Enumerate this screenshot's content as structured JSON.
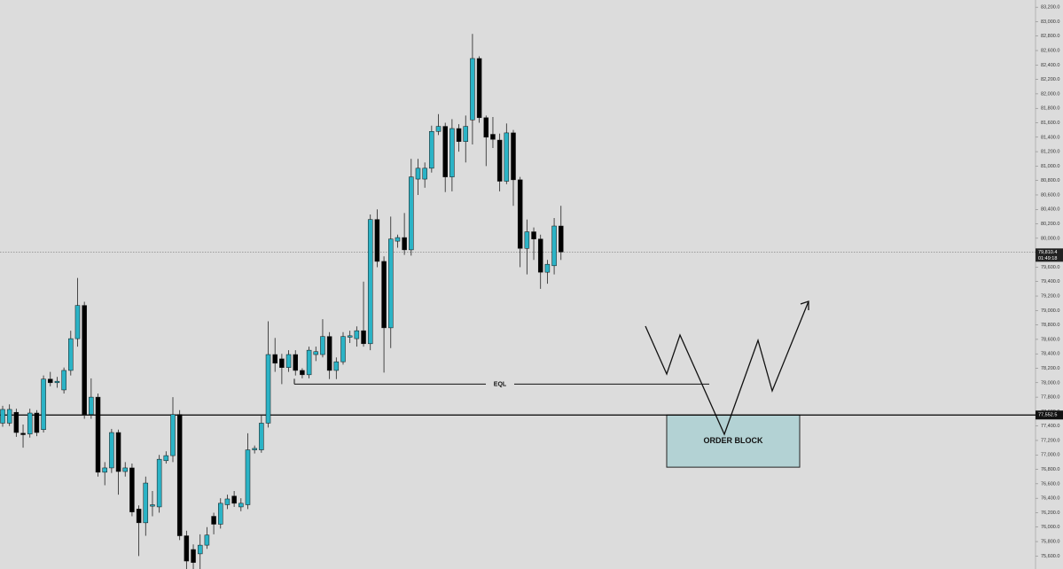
{
  "chart_data": {
    "type": "candlestick",
    "up_color": "#2bb3c6",
    "down_color": "#000000",
    "open": [
      77440,
      77440,
      77590,
      77300,
      77290,
      77580,
      77350,
      78050,
      78000,
      77900,
      78170,
      78610,
      79070,
      77560,
      77800,
      76760,
      76820,
      77310,
      76770,
      76820,
      76250,
      76060,
      76290,
      76280,
      76920,
      76990,
      77560,
      75880,
      75690,
      75630,
      75750,
      76150,
      76040,
      76310,
      76430,
      76280,
      76310,
      77070,
      77070,
      77440,
      78390,
      78330,
      78210,
      78390,
      78170,
      78110,
      78390,
      78390,
      78640,
      78170,
      78290,
      78630,
      78610,
      78720,
      78540,
      80260,
      79680,
      78760,
      79960,
      80010,
      79840,
      80820,
      80820,
      80970,
      81480,
      81550,
      80850,
      81520,
      81340,
      81640,
      82490,
      81670,
      81440,
      81360,
      80790,
      81460,
      80810,
      79860,
      80090,
      79990,
      79530,
      79620,
      80170
    ],
    "high": [
      77680,
      77700,
      77640,
      77420,
      77640,
      77620,
      78100,
      78150,
      78080,
      78210,
      78720,
      79450,
      79120,
      78060,
      77850,
      76900,
      77360,
      77350,
      76900,
      76880,
      76300,
      76700,
      76500,
      77000,
      77050,
      77800,
      77620,
      75950,
      75760,
      75900,
      76000,
      76200,
      76400,
      76450,
      76500,
      76400,
      77300,
      77130,
      77560,
      78850,
      78620,
      78400,
      78450,
      78450,
      78200,
      78500,
      78500,
      78880,
      78700,
      78350,
      78700,
      78720,
      78780,
      79400,
      80330,
      80400,
      79750,
      80300,
      80050,
      80350,
      81100,
      81100,
      81050,
      81560,
      81720,
      81600,
      81650,
      81580,
      81700,
      82830,
      82520,
      81700,
      81680,
      81450,
      81590,
      81500,
      80850,
      80260,
      80150,
      80050,
      79700,
      80280,
      80450
    ],
    "low": [
      77390,
      77400,
      77250,
      77100,
      77240,
      77260,
      77310,
      77950,
      77930,
      77850,
      78100,
      78500,
      77500,
      77500,
      76700,
      76580,
      76750,
      76450,
      76700,
      76150,
      75600,
      75880,
      76150,
      76200,
      76880,
      76900,
      75820,
      75420,
      75420,
      75420,
      75700,
      75900,
      75980,
      76250,
      76280,
      76220,
      76250,
      77020,
      77030,
      77380,
      78150,
      77980,
      78150,
      78100,
      78060,
      78060,
      78300,
      78350,
      78050,
      78050,
      78250,
      78550,
      78500,
      78500,
      78450,
      79600,
      78140,
      78480,
      79870,
      79770,
      79760,
      80600,
      80700,
      80910,
      81430,
      80640,
      80650,
      81200,
      81050,
      81300,
      81600,
      81000,
      81250,
      80650,
      80750,
      80450,
      79600,
      79500,
      79700,
      79300,
      79370,
      79500,
      79700
    ],
    "close": [
      77630,
      77630,
      77310,
      77280,
      77580,
      77310,
      78050,
      78000,
      78020,
      78170,
      78610,
      79070,
      77560,
      77800,
      76760,
      76820,
      77310,
      76770,
      76820,
      76210,
      76060,
      76610,
      76310,
      76940,
      76990,
      77560,
      75880,
      75530,
      75510,
      75750,
      75890,
      76040,
      76330,
      76390,
      76330,
      76330,
      77070,
      77090,
      77440,
      78390,
      78270,
      78210,
      78390,
      78170,
      78110,
      78450,
      78430,
      78640,
      78170,
      78290,
      78640,
      78650,
      78720,
      78540,
      80260,
      79680,
      78760,
      79990,
      80010,
      79840,
      80850,
      80970,
      80970,
      81480,
      81550,
      80850,
      81520,
      81340,
      81550,
      82490,
      81670,
      81400,
      81370,
      80790,
      81460,
      80810,
      79860,
      80090,
      79990,
      79530,
      79640,
      80170,
      79810
    ],
    "ylim": [
      75420,
      83300
    ],
    "yticks": [
      {
        "value": 75600,
        "label": "75,600.0"
      },
      {
        "value": 75800,
        "label": "75,800.0"
      },
      {
        "value": 76000,
        "label": "76,000.0"
      },
      {
        "value": 76200,
        "label": "76,200.0"
      },
      {
        "value": 76400,
        "label": "76,400.0"
      },
      {
        "value": 76600,
        "label": "76,600.0"
      },
      {
        "value": 76800,
        "label": "76,800.0"
      },
      {
        "value": 77000,
        "label": "77,000.0"
      },
      {
        "value": 77200,
        "label": "77,200.0"
      },
      {
        "value": 77400,
        "label": "77,400.0"
      },
      {
        "value": 77600,
        "label": "77,600.0"
      },
      {
        "value": 77800,
        "label": "77,800.0"
      },
      {
        "value": 78000,
        "label": "78,000.0"
      },
      {
        "value": 78200,
        "label": "78,200.0"
      },
      {
        "value": 78400,
        "label": "78,400.0"
      },
      {
        "value": 78600,
        "label": "78,600.0"
      },
      {
        "value": 78800,
        "label": "78,800.0"
      },
      {
        "value": 79000,
        "label": "79,000.0"
      },
      {
        "value": 79200,
        "label": "79,200.0"
      },
      {
        "value": 79400,
        "label": "79,400.0"
      },
      {
        "value": 79600,
        "label": "79,600.0"
      },
      {
        "value": 79800,
        "label": "79,800.0"
      },
      {
        "value": 80000,
        "label": "80,000.0"
      },
      {
        "value": 80200,
        "label": "80,200.0"
      },
      {
        "value": 80400,
        "label": "80,400.0"
      },
      {
        "value": 80600,
        "label": "80,600.0"
      },
      {
        "value": 80800,
        "label": "80,800.0"
      },
      {
        "value": 81000,
        "label": "81,000.0"
      },
      {
        "value": 81200,
        "label": "81,200.0"
      },
      {
        "value": 81400,
        "label": "81,400.0"
      },
      {
        "value": 81600,
        "label": "81,600.0"
      },
      {
        "value": 81800,
        "label": "81,800.0"
      },
      {
        "value": 82000,
        "label": "82,000.0"
      },
      {
        "value": 82200,
        "label": "82,200.0"
      },
      {
        "value": 82400,
        "label": "82,400.0"
      },
      {
        "value": 82600,
        "label": "82,600.0"
      },
      {
        "value": 82800,
        "label": "82,800.0"
      },
      {
        "value": 83000,
        "label": "83,000.0"
      },
      {
        "value": 83200,
        "label": "83,200.0"
      }
    ],
    "last_price": {
      "value": 79810.4,
      "label": "79,810.4",
      "countdown": "01:49:18"
    },
    "level": {
      "value": 77552.5,
      "label": "77,552.5"
    },
    "eql": {
      "label": "EQL",
      "value": 77980
    },
    "order_block": {
      "label": "ORDER BLOCK",
      "top": 77552.5,
      "bottom": 76830
    }
  }
}
